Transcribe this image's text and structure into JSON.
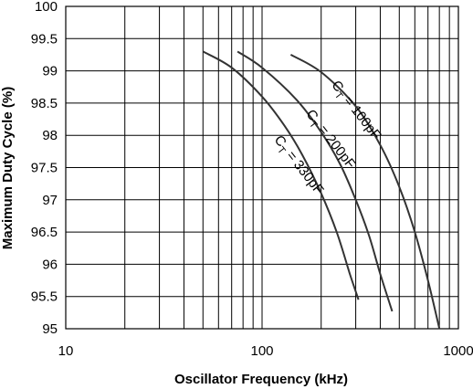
{
  "chart_data": {
    "type": "line",
    "title": "",
    "xlabel": "Oscillator  Frequency  (kHz)",
    "ylabel": "Maximum Duty Cycle  (%)",
    "x_scale": "log",
    "xlim": [
      10,
      1000
    ],
    "ylim": [
      95,
      100
    ],
    "x_major_ticks": [
      {
        "value": 10,
        "label": "10"
      },
      {
        "value": 100,
        "label": "100"
      },
      {
        "value": 1000,
        "label": "1000"
      }
    ],
    "y_ticks": [
      {
        "value": 95,
        "label": "95"
      },
      {
        "value": 95.5,
        "label": "95.5"
      },
      {
        "value": 96,
        "label": "96"
      },
      {
        "value": 96.5,
        "label": "96.5"
      },
      {
        "value": 97,
        "label": "97"
      },
      {
        "value": 97.5,
        "label": "97.5"
      },
      {
        "value": 98,
        "label": "98"
      },
      {
        "value": 98.5,
        "label": "98.5"
      },
      {
        "value": 99,
        "label": "99"
      },
      {
        "value": 99.5,
        "label": "99.5"
      },
      {
        "value": 100,
        "label": "100"
      }
    ],
    "grid": true,
    "line_color": "#333333",
    "series": [
      {
        "name": "CT = 100pF",
        "label_sub": "T",
        "label_rest": " = 100pF",
        "x": [
          140,
          200,
          300,
          400,
          500,
          600,
          700,
          800
        ],
        "y": [
          99.25,
          98.98,
          98.45,
          97.85,
          97.2,
          96.5,
          95.75,
          95.0
        ]
      },
      {
        "name": "CT = 200pF",
        "label_sub": "T",
        "label_rest": " = 200pF",
        "x": [
          75,
          100,
          150,
          200,
          250,
          300,
          350,
          400,
          460
        ],
        "y": [
          99.3,
          99.05,
          98.55,
          98.05,
          97.55,
          97.0,
          96.45,
          95.85,
          95.27
        ]
      },
      {
        "name": "CT = 330pF",
        "label_sub": "T",
        "label_rest": " = 330pF",
        "x": [
          50,
          70,
          100,
          130,
          160,
          200,
          240,
          280,
          310
        ],
        "y": [
          99.3,
          99.05,
          98.6,
          98.15,
          97.7,
          97.1,
          96.5,
          95.85,
          95.45
        ]
      }
    ],
    "curve_labels": [
      {
        "series": 0,
        "x": 290,
        "y": 98.35,
        "angle": 52
      },
      {
        "series": 1,
        "x": 215,
        "y": 97.9,
        "angle": 52
      },
      {
        "series": 2,
        "x": 148,
        "y": 97.5,
        "angle": 52
      }
    ]
  }
}
